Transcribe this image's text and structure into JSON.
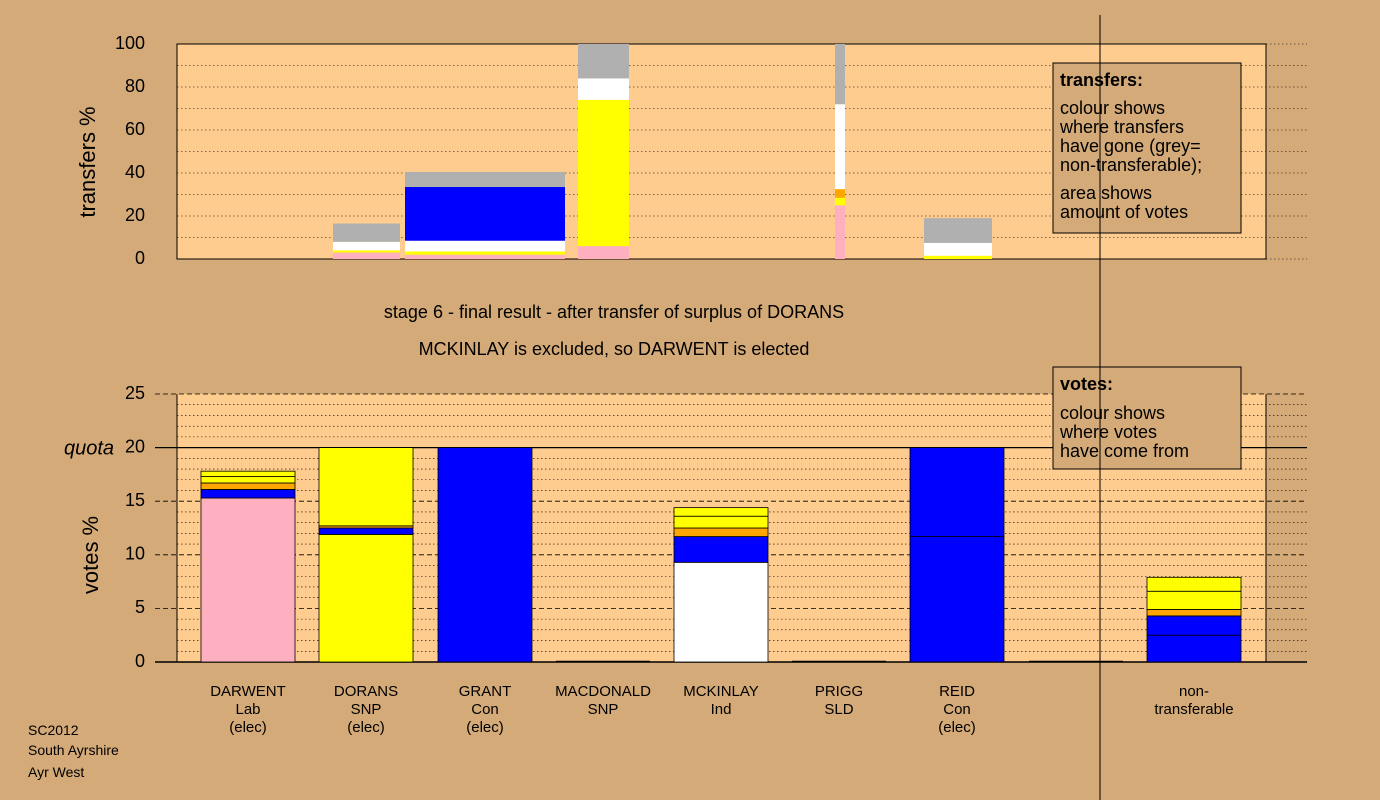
{
  "colors": {
    "background": "#d4aa78",
    "plot_fill": "#ffcc90",
    "legend_fill": "#d4aa78",
    "Lab": "#ffb0c0",
    "SNP": "#ffff00",
    "Con": "#0000ff",
    "Ind": "#ffffff",
    "SLD": "#ffa500",
    "non_transferable": "#b0b0b0"
  },
  "title_line1": "stage 6 - final result - after transfer of surplus of DORANS",
  "title_line2": "MCKINLAY is excluded, so DARWENT is elected",
  "footer": [
    "SC2012",
    "South Ayrshire",
    "Ayr West"
  ],
  "legend_transfers": {
    "heading": "transfers:",
    "lines": [
      "colour shows",
      "where transfers",
      "have gone (grey=",
      "non-transferable);",
      "area shows",
      "amount of votes"
    ]
  },
  "legend_votes": {
    "heading": "votes:",
    "lines": [
      "colour shows",
      "where votes",
      "have come from"
    ]
  },
  "chart_data": [
    {
      "type": "bar",
      "name": "transfers",
      "ylabel": "transfers %",
      "ylim": [
        0,
        100
      ],
      "yticks": [
        0,
        20,
        40,
        60,
        80,
        100
      ],
      "grid": true,
      "bars": [
        {
          "segments": [
            {
              "party": "Lab",
              "value": 3
            },
            {
              "party": "SNP",
              "value": 1
            },
            {
              "party": "Ind",
              "value": 4
            },
            {
              "party": "non_transferable",
              "value": 8.5
            }
          ]
        },
        {
          "segments": [
            {
              "party": "Lab",
              "value": 2
            },
            {
              "party": "SNP",
              "value": 1.5
            },
            {
              "party": "Ind",
              "value": 5
            },
            {
              "party": "Con",
              "value": 25
            },
            {
              "party": "non_transferable",
              "value": 7
            }
          ]
        },
        {
          "segments": [
            {
              "party": "Lab",
              "value": 6
            },
            {
              "party": "SNP",
              "value": 68
            },
            {
              "party": "Ind",
              "value": 10
            },
            {
              "party": "non_transferable",
              "value": 16
            }
          ]
        },
        {
          "segments": [
            {
              "party": "Lab",
              "value": 25
            },
            {
              "party": "SNP",
              "value": 3.5
            },
            {
              "party": "SLD",
              "value": 4
            },
            {
              "party": "Ind",
              "value": 39.5
            },
            {
              "party": "non_transferable",
              "value": 28
            }
          ]
        },
        {
          "segments": [
            {
              "party": "SNP",
              "value": 1.5
            },
            {
              "party": "Ind",
              "value": 6
            },
            {
              "party": "non_transferable",
              "value": 11.5
            }
          ]
        }
      ]
    },
    {
      "type": "bar",
      "name": "votes",
      "ylabel": "votes %",
      "ylim": [
        0,
        25
      ],
      "yticks": [
        0,
        5,
        10,
        15,
        20,
        25
      ],
      "quota": 20,
      "quota_label": "quota",
      "grid": true,
      "categories": [
        {
          "name": "DARWENT",
          "party": "Lab",
          "status": "(elec)"
        },
        {
          "name": "DORANS",
          "party": "SNP",
          "status": "(elec)"
        },
        {
          "name": "GRANT",
          "party": "Con",
          "status": "(elec)"
        },
        {
          "name": "MACDONALD",
          "party": "SNP",
          "status": ""
        },
        {
          "name": "MCKINLAY",
          "party": "Ind",
          "status": ""
        },
        {
          "name": "PRIGG",
          "party": "SLD",
          "status": ""
        },
        {
          "name": "REID",
          "party": "Con",
          "status": "(elec)"
        },
        {
          "name": "",
          "party": "",
          "status": ""
        },
        {
          "name": "non-",
          "party": "transferable",
          "status": ""
        }
      ],
      "stacks": [
        [
          {
            "party": "Lab",
            "value": 15.3
          },
          {
            "party": "Con",
            "value": 0.8
          },
          {
            "party": "SLD",
            "value": 0.6
          },
          {
            "party": "SNP",
            "value": 0.6
          },
          {
            "party": "SNP",
            "value": 0.5
          }
        ],
        [
          {
            "party": "SNP",
            "value": 11.9
          },
          {
            "party": "Con",
            "value": 0.6
          },
          {
            "party": "SLD",
            "value": 0.2
          },
          {
            "party": "SNP",
            "value": 7.3
          }
        ],
        [
          {
            "party": "Con",
            "value": 20
          }
        ],
        [],
        [
          {
            "party": "Ind",
            "value": 9.3
          },
          {
            "party": "Con",
            "value": 2.4
          },
          {
            "party": "SLD",
            "value": 0.8
          },
          {
            "party": "SNP",
            "value": 1.1
          },
          {
            "party": "SNP",
            "value": 0.8
          }
        ],
        [],
        [
          {
            "party": "Con",
            "value": 11.7
          },
          {
            "party": "Con",
            "value": 8.3
          }
        ],
        [],
        [
          {
            "party": "Con",
            "value": 2.5
          },
          {
            "party": "Con",
            "value": 1.8
          },
          {
            "party": "SLD",
            "value": 0.6
          },
          {
            "party": "SNP",
            "value": 1.7
          },
          {
            "party": "SNP",
            "value": 1.3
          }
        ]
      ]
    }
  ]
}
